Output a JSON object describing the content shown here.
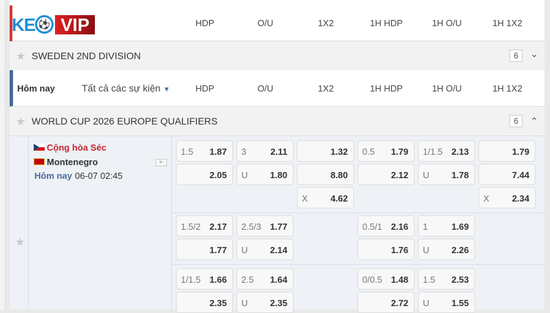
{
  "logo": {
    "text": "KEOVIP"
  },
  "columns": [
    "HDP",
    "O/U",
    "1X2",
    "1H HDP",
    "1H O/U",
    "1H 1X2"
  ],
  "league1": {
    "name": "SWEDEN 2ND DIVISION",
    "count": "6"
  },
  "filter": {
    "today": "Hôm nay",
    "all_events": "Tất cả các sự kiện"
  },
  "league2": {
    "name": "WORLD CUP 2026 EUROPE QUALIFIERS",
    "count": "6"
  },
  "match": {
    "home": "Cộng hòa Séc",
    "away": "Montenegro",
    "day": "Hôm nay",
    "time": "06-07 02:45"
  },
  "odds": [
    [
      [
        [
          "1.5",
          "1.87"
        ],
        [
          "3",
          "2.11"
        ],
        [
          "",
          "1.32"
        ],
        [
          "0.5",
          "1.79"
        ],
        [
          "1/1.5",
          "2.13"
        ],
        [
          "",
          "1.79"
        ]
      ],
      [
        [
          "",
          "2.05"
        ],
        [
          "U",
          "1.80"
        ],
        [
          "",
          "8.80"
        ],
        [
          "",
          "2.12"
        ],
        [
          "U",
          "1.78"
        ],
        [
          "",
          "7.44"
        ]
      ],
      [
        null,
        null,
        [
          "X",
          "4.62"
        ],
        null,
        null,
        [
          "X",
          "2.34"
        ]
      ]
    ],
    [
      [
        [
          "1.5/2",
          "2.17"
        ],
        [
          "2.5/3",
          "1.77"
        ],
        null,
        [
          "0.5/1",
          "2.16"
        ],
        [
          "1",
          "1.69"
        ],
        null
      ],
      [
        [
          "",
          "1.77"
        ],
        [
          "U",
          "2.14"
        ],
        null,
        [
          "",
          "1.76"
        ],
        [
          "U",
          "2.26"
        ],
        null
      ]
    ],
    [
      [
        [
          "1/1.5",
          "1.66"
        ],
        [
          "2.5",
          "1.64"
        ],
        null,
        [
          "0/0.5",
          "1.48"
        ],
        [
          "1.5",
          "2.53"
        ],
        null
      ],
      [
        [
          "",
          "2.35"
        ],
        [
          "U",
          "2.35"
        ],
        null,
        [
          "",
          "2.72"
        ],
        [
          "U",
          "1.55"
        ],
        null
      ]
    ]
  ]
}
